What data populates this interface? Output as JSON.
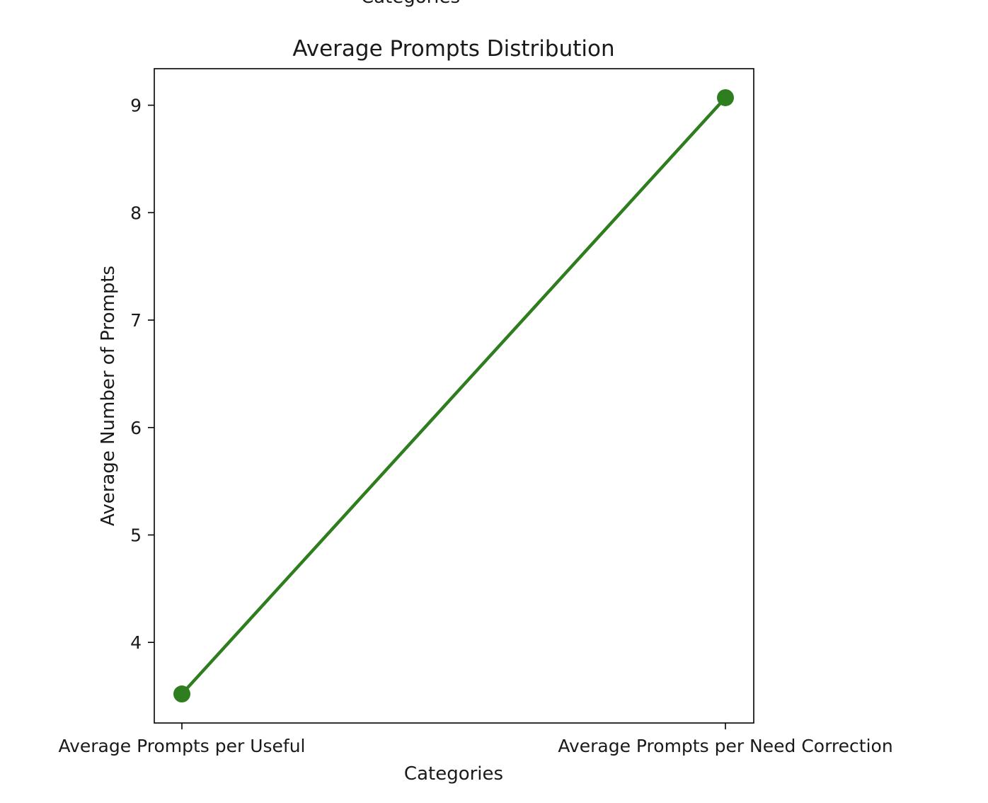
{
  "cropped_label": "Categories",
  "chart_data": {
    "type": "line",
    "title": "Average Prompts Distribution",
    "xlabel": "Categories",
    "ylabel": "Average Number of Prompts",
    "categories": [
      "Average Prompts per Useful",
      "Average Prompts per Need Correction"
    ],
    "series": [
      {
        "values": [
          3.52,
          9.07
        ],
        "color": "#2e7d1e",
        "marker": "circle"
      }
    ],
    "yticks": [
      4,
      5,
      6,
      7,
      8,
      9
    ],
    "ylim": [
      3.25,
      9.34
    ],
    "grid": false
  }
}
